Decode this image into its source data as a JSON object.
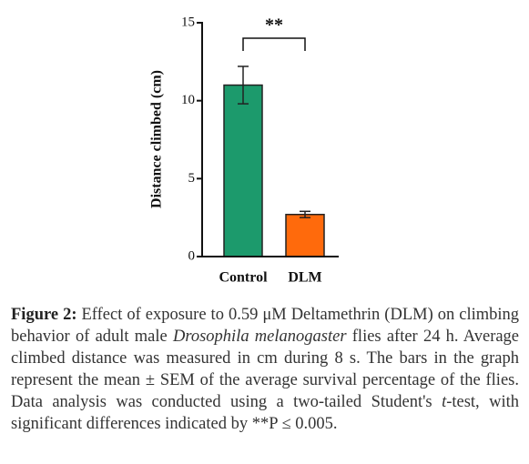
{
  "chart_data": {
    "type": "bar",
    "y_label": "Distance climbed (cm)",
    "categories": [
      "Control",
      "DLM"
    ],
    "values": [
      11,
      2.7
    ],
    "errors": [
      1.2,
      0.2
    ],
    "colors": [
      "#1c9a6c",
      "#ff6a0c"
    ],
    "ylim": [
      0,
      15
    ],
    "yticks": [
      0,
      5,
      10,
      15
    ],
    "annotation": {
      "text": "**",
      "from": 0,
      "to": 1
    }
  },
  "caption": {
    "label": "Figure 2:",
    "part_1": "Effect of exposure to 0.59 μM Deltamethrin (DLM) on climbing behavior of adult male",
    "species": "Drosophila melanogaster",
    "part_2": "flies after 24 h. Average climbed distance was measured in cm during 8 s. The bars in the graph represent the mean ± SEM of the average survival percentage of the flies. Data analysis was conducted using a two-tailed Student's",
    "t": "t",
    "part_3": "-test, with significant differences indicated by **P ≤ 0.005."
  }
}
